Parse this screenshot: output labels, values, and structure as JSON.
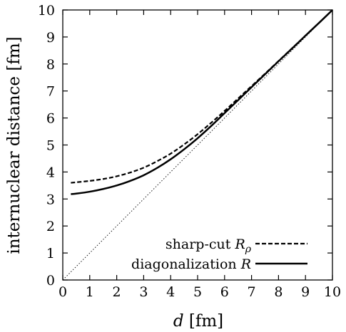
{
  "chart_data": {
    "type": "line",
    "xlabel_var": "d",
    "xlabel_unit": "[fm]",
    "ylabel": "internuclear distance [fm]",
    "xlim": [
      0,
      10
    ],
    "ylim": [
      0,
      10
    ],
    "xticks": [
      "0",
      "1",
      "2",
      "3",
      "4",
      "5",
      "6",
      "7",
      "8",
      "9",
      "10"
    ],
    "yticks": [
      "0",
      "1",
      "2",
      "3",
      "4",
      "5",
      "6",
      "7",
      "8",
      "9",
      "10"
    ],
    "grid": false,
    "legend_position": "bottom-right",
    "reference_line": {
      "style": "dotted",
      "x": [
        0,
        10
      ],
      "y": [
        0,
        10
      ]
    },
    "series": [
      {
        "label_text": "sharp-cut ",
        "label_var": "R",
        "label_sub": "ρ",
        "style": "dashed",
        "x": [
          0.3,
          0.5,
          1.0,
          1.5,
          2.0,
          2.5,
          3.0,
          3.5,
          4.0,
          4.5,
          5.0,
          5.5,
          6.0,
          6.5,
          7.0,
          7.5,
          8.0,
          8.5,
          9.0,
          9.5,
          10.0
        ],
        "y": [
          3.6,
          3.62,
          3.67,
          3.74,
          3.84,
          3.98,
          4.16,
          4.4,
          4.68,
          5.02,
          5.4,
          5.82,
          6.26,
          6.72,
          7.18,
          7.64,
          8.11,
          8.58,
          9.05,
          9.52,
          10.0
        ]
      },
      {
        "label_text": "diagonalization ",
        "label_var": "R",
        "label_sub": "",
        "style": "solid",
        "x": [
          0.3,
          0.5,
          1.0,
          1.5,
          2.0,
          2.5,
          3.0,
          3.5,
          4.0,
          4.5,
          5.0,
          5.5,
          6.0,
          6.5,
          7.0,
          7.5,
          8.0,
          8.5,
          9.0,
          9.5,
          10.0
        ],
        "y": [
          3.18,
          3.2,
          3.27,
          3.37,
          3.5,
          3.67,
          3.88,
          4.15,
          4.47,
          4.84,
          5.25,
          5.7,
          6.18,
          6.66,
          7.14,
          7.62,
          8.1,
          8.57,
          9.05,
          9.52,
          10.0
        ]
      }
    ]
  }
}
